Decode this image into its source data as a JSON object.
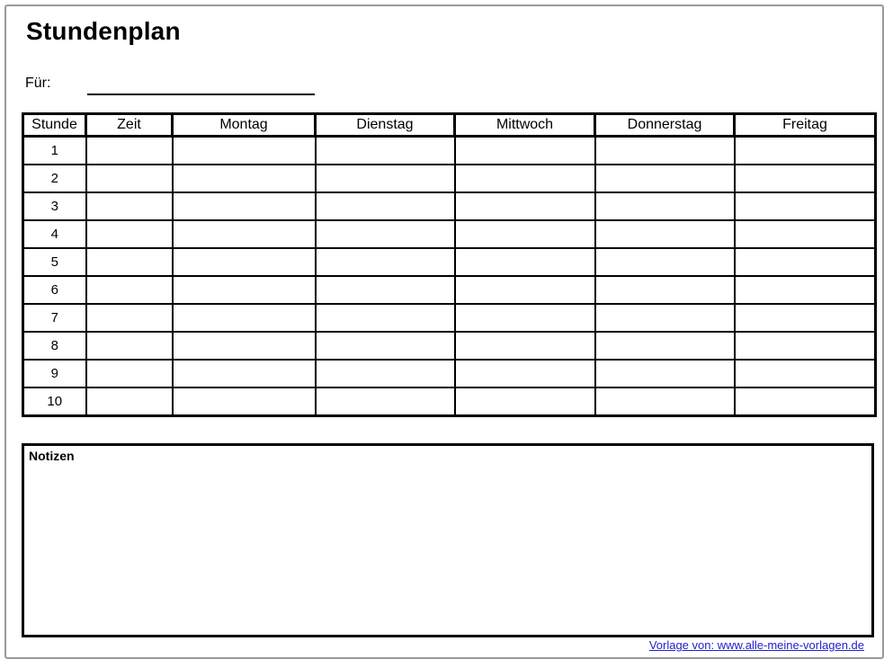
{
  "header": {
    "title": "Stundenplan"
  },
  "for_field": {
    "label": "Für:",
    "value": ""
  },
  "timetable": {
    "columns": [
      "Stunde",
      "Zeit",
      "Montag",
      "Dienstag",
      "Mittwoch",
      "Donnerstag",
      "Freitag"
    ],
    "rows": [
      [
        "1",
        "",
        "",
        "",
        "",
        "",
        ""
      ],
      [
        "2",
        "",
        "",
        "",
        "",
        "",
        ""
      ],
      [
        "3",
        "",
        "",
        "",
        "",
        "",
        ""
      ],
      [
        "4",
        "",
        "",
        "",
        "",
        "",
        ""
      ],
      [
        "5",
        "",
        "",
        "",
        "",
        "",
        ""
      ],
      [
        "6",
        "",
        "",
        "",
        "",
        "",
        ""
      ],
      [
        "7",
        "",
        "",
        "",
        "",
        "",
        ""
      ],
      [
        "8",
        "",
        "",
        "",
        "",
        "",
        ""
      ],
      [
        "9",
        "",
        "",
        "",
        "",
        "",
        ""
      ],
      [
        "10",
        "",
        "",
        "",
        "",
        "",
        ""
      ]
    ]
  },
  "notes": {
    "label": "Notizen",
    "content": ""
  },
  "footer": {
    "link_text": "Vorlage von: www.alle-meine-vorlagen.de"
  },
  "colors": {
    "table_border": "#000000",
    "page_border": "#999999",
    "link": "#2222cc"
  }
}
